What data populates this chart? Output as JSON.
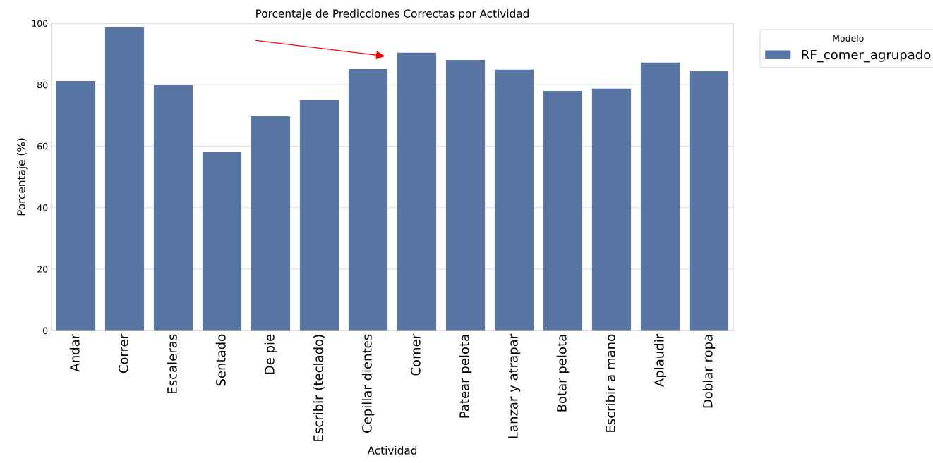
{
  "chart_data": {
    "type": "bar",
    "title": "Porcentaje de Predicciones Correctas por Actividad",
    "xlabel": "Actividad",
    "ylabel": "Porcentaje (%)",
    "legend_title": "Modelo",
    "categories": [
      "Andar",
      "Correr",
      "Escaleras",
      "Sentado",
      "De pie",
      "Escribir (teclado)",
      "Cepillar dientes",
      "Comer",
      "Patear pelota",
      "Lanzar y atrapar",
      "Botar pelota",
      "Escribir a mano",
      "Aplaudir",
      "Doblar ropa"
    ],
    "series": [
      {
        "name": "RF_comer_agrupado",
        "color": "#5975a4",
        "values": [
          81.2,
          98.6,
          80.0,
          58.0,
          69.7,
          75.0,
          85.1,
          90.4,
          88.1,
          84.9,
          78.0,
          78.7,
          87.2,
          84.4
        ]
      }
    ],
    "ylim": [
      0,
      100
    ],
    "yticks": [
      0,
      20,
      40,
      60,
      80,
      100
    ],
    "grid": "y",
    "legend": "top right"
  }
}
